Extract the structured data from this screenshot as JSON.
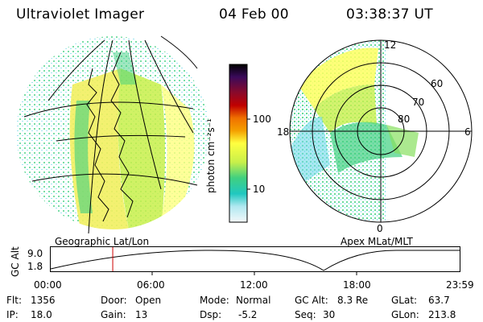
{
  "header": {
    "title": "Ultraviolet Imager",
    "date": "04 Feb 00",
    "time": "03:38:37 UT"
  },
  "colorbar": {
    "label": "photon cm⁻²s⁻¹",
    "ticks": [
      "100",
      "10"
    ],
    "colors": [
      "#000000",
      "#1a0030",
      "#3a0a5a",
      "#6a1a80",
      "#8a0a2a",
      "#c00000",
      "#e03a00",
      "#f07000",
      "#f4a000",
      "#f8d000",
      "#ffff40",
      "#c8f04a",
      "#88e060",
      "#40d080",
      "#20c8c0",
      "#70d8e8",
      "#b0e8f0",
      "#e8f4f8"
    ]
  },
  "left_map": {
    "label": "Geographic Lat/Lon"
  },
  "right_map": {
    "label": "Apex MLat/MLT",
    "mlt_labels": [
      "12",
      "18",
      "6",
      "0"
    ],
    "lat_labels": [
      "60",
      "70",
      "80"
    ]
  },
  "altitude_plot": {
    "ylabel": "GC Alt",
    "yticks": [
      "9.0",
      "1.8"
    ],
    "xticks": [
      "00:00",
      "06:00",
      "12:00",
      "18:00",
      "23:59"
    ],
    "current_time_hours": 3.64
  },
  "info": {
    "flt_label": "Flt:",
    "flt_value": "1356",
    "ip_label": "IP:",
    "ip_value": "18.0",
    "door_label": "Door:",
    "door_value": "Open",
    "gain_label": "Gain:",
    "gain_value": "13",
    "mode_label": "Mode:",
    "mode_value": "Normal",
    "dsp_label": "Dsp:",
    "dsp_value": "-5.2",
    "gcalt_label": "GC Alt:",
    "gcalt_value": "8.3 Re",
    "seq_label": "Seq:",
    "seq_value": "30",
    "glat_label": "GLat:",
    "glat_value": "63.7",
    "glon_label": "GLon:",
    "glon_value": "213.8"
  }
}
